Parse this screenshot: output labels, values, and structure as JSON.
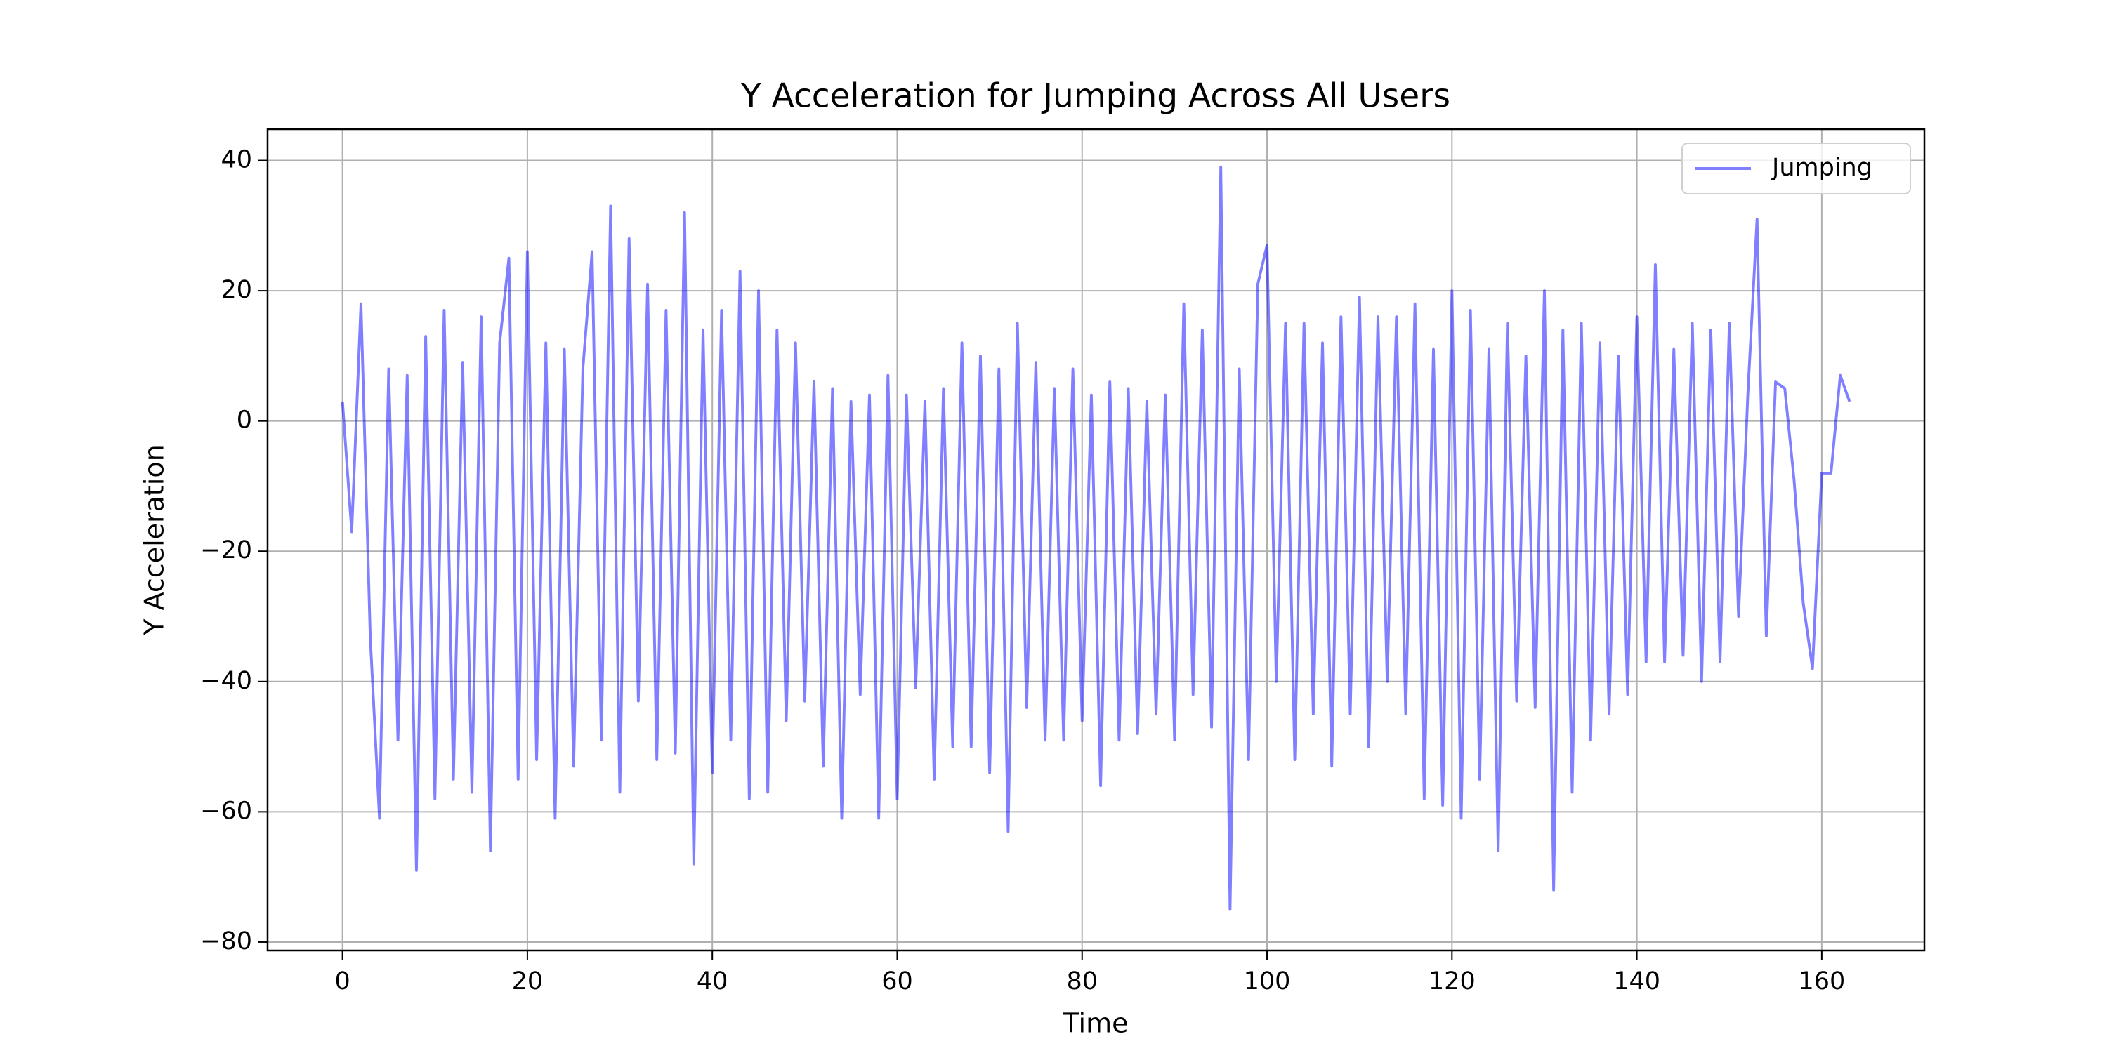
{
  "chart_data": {
    "type": "line",
    "title": "Y Acceleration for Jumping Across All Users",
    "xlabel": "Time",
    "ylabel": "Y Acceleration",
    "x": [
      0,
      1,
      2,
      3,
      4,
      5,
      6,
      7,
      8,
      9,
      10,
      11,
      12,
      13,
      14,
      15,
      16,
      17,
      18,
      19,
      20,
      21,
      22,
      23,
      24,
      25,
      26,
      27,
      28,
      29,
      30,
      31,
      32,
      33,
      34,
      35,
      36,
      37,
      38,
      39,
      40,
      41,
      42,
      43,
      44,
      45,
      46,
      47,
      48,
      49,
      50,
      51,
      52,
      53,
      54,
      55,
      56,
      57,
      58,
      59,
      60,
      61,
      62,
      63,
      64,
      65,
      66,
      67,
      68,
      69,
      70,
      71,
      72,
      73,
      74,
      75,
      76,
      77,
      78,
      79,
      80,
      81,
      82,
      83,
      84,
      85,
      86,
      87,
      88,
      89,
      90,
      91,
      92,
      93,
      94,
      95,
      96,
      97,
      98,
      99,
      100,
      101,
      102,
      103,
      104,
      105,
      106,
      107,
      108,
      109,
      110,
      111,
      112,
      113,
      114,
      115,
      116,
      117,
      118,
      119,
      120,
      121,
      122,
      123,
      124,
      125,
      126,
      127,
      128,
      129,
      130,
      131,
      132,
      133,
      134,
      135,
      136,
      137,
      138,
      139,
      140,
      141,
      142,
      143,
      144,
      145,
      146,
      147,
      148,
      149,
      150,
      151,
      152,
      153,
      154,
      155,
      156,
      157,
      158,
      159,
      160,
      161,
      162,
      163
    ],
    "series": [
      {
        "name": "Jumping",
        "color": "#0000ff",
        "values": [
          3,
          -17,
          18,
          -33,
          -61,
          8,
          -49,
          7,
          -69,
          13,
          -58,
          17,
          -55,
          9,
          -57,
          16,
          -66,
          12,
          25,
          -55,
          26,
          -52,
          12,
          -61,
          11,
          -53,
          8,
          26,
          -49,
          33,
          -57,
          28,
          -43,
          21,
          -52,
          17,
          -51,
          32,
          -68,
          14,
          -54,
          17,
          -49,
          23,
          -58,
          20,
          -57,
          14,
          -46,
          12,
          -43,
          6,
          -53,
          5,
          -61,
          3,
          -42,
          4,
          -61,
          7,
          -58,
          4,
          -41,
          3,
          -55,
          5,
          -50,
          12,
          -50,
          10,
          -54,
          8,
          -63,
          15,
          -44,
          9,
          -49,
          5,
          -49,
          8,
          -46,
          4,
          -56,
          6,
          -49,
          5,
          -48,
          3,
          -45,
          4,
          -49,
          18,
          -42,
          14,
          -47,
          39,
          -75,
          8,
          -52,
          21,
          27,
          -40,
          15,
          -52,
          15,
          -45,
          12,
          -53,
          16,
          -45,
          19,
          -50,
          16,
          -40,
          16,
          -45,
          18,
          -58,
          11,
          -59,
          20,
          -61,
          17,
          -55,
          11,
          -66,
          15,
          -43,
          10,
          -44,
          20,
          -72,
          14,
          -57,
          15,
          -49,
          12,
          -45,
          10,
          -42,
          16,
          -37,
          24,
          -37,
          11,
          -36,
          15,
          -40,
          14,
          -37,
          15,
          -30,
          4,
          31,
          -33,
          6,
          5,
          -9,
          -28,
          -38,
          -8,
          -8,
          7,
          3
        ]
      }
    ],
    "opacity": 0.5,
    "xlim": [
      -8.1,
      171.1
    ],
    "ylim": [
      -81.3,
      44.8
    ],
    "xticks": [
      0,
      20,
      40,
      60,
      80,
      100,
      120,
      140,
      160
    ],
    "yticks": [
      {
        "value": -80,
        "label": "−80"
      },
      {
        "value": -60,
        "label": "−60"
      },
      {
        "value": -40,
        "label": "−40"
      },
      {
        "value": -20,
        "label": "−20"
      },
      0,
      20,
      40
    ],
    "grid": true,
    "legend": "upper right"
  }
}
